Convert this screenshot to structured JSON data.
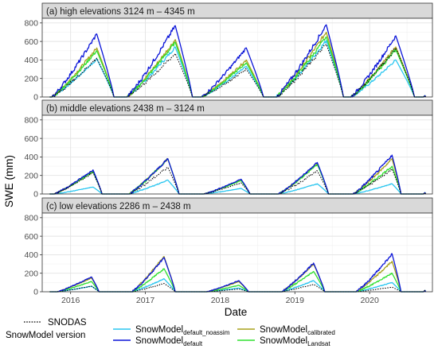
{
  "chart_data": {
    "type": "line",
    "xlabel": "Date",
    "ylabel": "SWE (mm)",
    "x_tick_labels": [
      "2016",
      "2017",
      "2018",
      "2019",
      "2020"
    ],
    "x_tick_values": [
      2016.0,
      2017.0,
      2018.0,
      2019.0,
      2020.0
    ],
    "xlim": [
      2015.62,
      2020.84
    ],
    "ylim": [
      0,
      850
    ],
    "y_ticks": [
      0,
      200,
      400,
      600,
      800
    ],
    "y_tick_labels": [
      "0",
      "200",
      "400",
      "600",
      "800"
    ],
    "grid": true,
    "legend_position": "bottom",
    "legend": {
      "snodas_label": "SNODAS",
      "group_title": "SnowModel version",
      "items": [
        {
          "key": "default_noassim",
          "main": "SnowModel",
          "sub": "default_noassim",
          "color": "#29c6f0"
        },
        {
          "key": "default",
          "main": "SnowModel",
          "sub": "default",
          "color": "#0a14d8"
        },
        {
          "key": "calibrated",
          "main": "SnowModel",
          "sub": "calibrated",
          "color": "#a8a21c"
        },
        {
          "key": "landsat",
          "main": "SnowModel",
          "sub": "Landsat",
          "color": "#2ee02e"
        }
      ]
    },
    "colors": {
      "snodas": "#000000",
      "default_noassim": "#29c6f0",
      "default": "#0a14d8",
      "calibrated": "#a8a21c",
      "landsat": "#2ee02e"
    },
    "panels": [
      {
        "title": "(a) high elevations 3124 m – 4345 m",
        "seasons": [
          {
            "start": 2015.75,
            "peak_t": 2016.35,
            "melt_end": 2016.58,
            "default": 680,
            "calibrated": 530,
            "landsat": 500,
            "default_noassim": 410,
            "snodas": 420
          },
          {
            "start": 2016.75,
            "peak_t": 2017.4,
            "melt_end": 2017.63,
            "default": 770,
            "calibrated": 620,
            "landsat": 590,
            "default_noassim": 540,
            "snodas": 470
          },
          {
            "start": 2017.75,
            "peak_t": 2018.35,
            "melt_end": 2018.58,
            "default": 530,
            "calibrated": 400,
            "landsat": 370,
            "default_noassim": 330,
            "snodas": 300
          },
          {
            "start": 2018.75,
            "peak_t": 2019.42,
            "melt_end": 2019.65,
            "default": 780,
            "calibrated": 700,
            "landsat": 650,
            "default_noassim": 610,
            "snodas": 570
          },
          {
            "start": 2019.75,
            "peak_t": 2020.35,
            "melt_end": 2020.6,
            "default": 660,
            "calibrated": 540,
            "landsat": 510,
            "default_noassim": 400,
            "snodas": 530
          }
        ]
      },
      {
        "title": "(b) middle elevations 2438 m – 3124 m",
        "seasons": [
          {
            "start": 2015.78,
            "peak_t": 2016.3,
            "melt_end": 2016.42,
            "default": 260,
            "calibrated": 250,
            "landsat": 240,
            "default_noassim": 75,
            "snodas": 230
          },
          {
            "start": 2016.78,
            "peak_t": 2017.3,
            "melt_end": 2017.45,
            "default": 380,
            "calibrated": 380,
            "landsat": 380,
            "default_noassim": 150,
            "snodas": 290
          },
          {
            "start": 2017.78,
            "peak_t": 2018.28,
            "melt_end": 2018.4,
            "default": 160,
            "calibrated": 150,
            "landsat": 145,
            "default_noassim": 60,
            "snodas": 120
          },
          {
            "start": 2018.78,
            "peak_t": 2019.3,
            "melt_end": 2019.45,
            "default": 340,
            "calibrated": 330,
            "landsat": 320,
            "default_noassim": 110,
            "snodas": 250
          },
          {
            "start": 2019.78,
            "peak_t": 2020.3,
            "melt_end": 2020.42,
            "default": 420,
            "calibrated": 380,
            "landsat": 300,
            "default_noassim": 110,
            "snodas": 270
          }
        ]
      },
      {
        "title": "(c) low elevations 2286 m – 2438 m",
        "seasons": [
          {
            "start": 2015.82,
            "peak_t": 2016.28,
            "melt_end": 2016.38,
            "default": 160,
            "calibrated": 150,
            "landsat": 110,
            "default_noassim": 60,
            "snodas": 60
          },
          {
            "start": 2016.82,
            "peak_t": 2017.25,
            "melt_end": 2017.4,
            "default": 370,
            "calibrated": 380,
            "landsat": 250,
            "default_noassim": 140,
            "snodas": 90
          },
          {
            "start": 2017.82,
            "peak_t": 2018.25,
            "melt_end": 2018.38,
            "default": 120,
            "calibrated": 110,
            "landsat": 70,
            "default_noassim": 40,
            "snodas": 30
          },
          {
            "start": 2018.82,
            "peak_t": 2019.25,
            "melt_end": 2019.4,
            "default": 310,
            "calibrated": 300,
            "landsat": 220,
            "default_noassim": 120,
            "snodas": 80
          },
          {
            "start": 2019.82,
            "peak_t": 2020.3,
            "melt_end": 2020.42,
            "default": 410,
            "calibrated": 330,
            "landsat": 200,
            "default_noassim": 100,
            "snodas": 50
          }
        ]
      }
    ]
  }
}
